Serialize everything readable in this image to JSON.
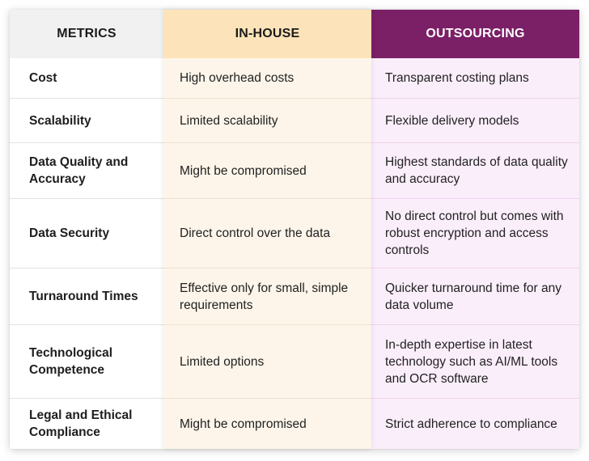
{
  "headers": {
    "metrics": "METRICS",
    "inhouse": "IN-HOUSE",
    "outsourcing": "OUTSOURCING"
  },
  "rows": [
    {
      "metric": "Cost",
      "inhouse": "High overhead costs",
      "outsourcing": "Transparent costing plans"
    },
    {
      "metric": "Scalability",
      "inhouse": "Limited scalability",
      "outsourcing": "Flexible delivery models"
    },
    {
      "metric": "Data Quality and Accuracy",
      "inhouse": "Might be compromised",
      "outsourcing": "Highest standards of data quality and accuracy"
    },
    {
      "metric": "Data Security",
      "inhouse": "Direct control over the data",
      "outsourcing": "No direct control but comes with robust encryption and access controls"
    },
    {
      "metric": "Turnaround Times",
      "inhouse": "Effective only for small, simple requirements",
      "outsourcing": "Quicker turnaround time for any data volume"
    },
    {
      "metric": "Technological Competence",
      "inhouse": "Limited options",
      "outsourcing": "In-depth expertise in latest technology such as AI/ML tools and OCR software"
    },
    {
      "metric": "Legal and Ethical Compliance",
      "inhouse": "Might be compromised",
      "outsourcing": "Strict adherence to compliance"
    }
  ],
  "colors": {
    "metrics_header_bg": "#f1f1f1",
    "inhouse_header_bg": "#fde3b9",
    "inhouse_body_bg": "#fdf5ea",
    "outsourcing_header_bg": "#7b1f66",
    "outsourcing_body_bg": "#fbeefb"
  }
}
